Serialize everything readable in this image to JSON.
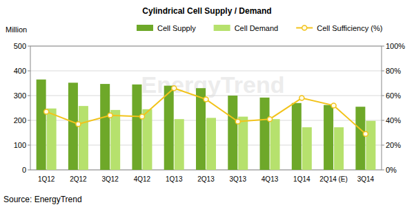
{
  "chart_data": {
    "type": "bar",
    "title": "Cylindrical Cell Supply / Demand",
    "y_label": "Million",
    "source": "Source: EnergyTrend",
    "watermark": "EnergyTrend",
    "categories": [
      "1Q12",
      "2Q12",
      "3Q12",
      "4Q12",
      "1Q13",
      "2Q13",
      "3Q13",
      "4Q13",
      "1Q14",
      "2Q14 (E)",
      "3Q14"
    ],
    "series": [
      {
        "name": "Cell Supply",
        "type": "bar",
        "color": "#6ea829",
        "values": [
          365,
          352,
          347,
          345,
          340,
          330,
          300,
          292,
          270,
          262,
          255
        ]
      },
      {
        "name": "Cell Demand",
        "type": "bar",
        "color": "#b6e16d",
        "values": [
          248,
          258,
          242,
          245,
          205,
          210,
          215,
          205,
          172,
          172,
          198
        ]
      },
      {
        "name": "Cell Sufficiency (%)",
        "type": "line",
        "axis": "y2",
        "color": "#f2c31a",
        "marker": "circle",
        "line_style": "solid",
        "values": [
          47,
          37,
          44,
          43,
          66,
          57,
          39,
          41,
          58,
          52,
          29
        ]
      }
    ],
    "ylim": [
      0,
      500
    ],
    "yticks": [
      0,
      100,
      200,
      300,
      400,
      500
    ],
    "y2lim": [
      0,
      100
    ],
    "y2ticks": [
      {
        "value": 0,
        "label": "0%"
      },
      {
        "value": 20,
        "label": "20%"
      },
      {
        "value": 40,
        "label": "40%"
      },
      {
        "value": 60,
        "label": "60%"
      },
      {
        "value": 80,
        "label": "80%"
      },
      {
        "value": 100,
        "label": "100%"
      }
    ],
    "grid": true,
    "legend": "top"
  }
}
